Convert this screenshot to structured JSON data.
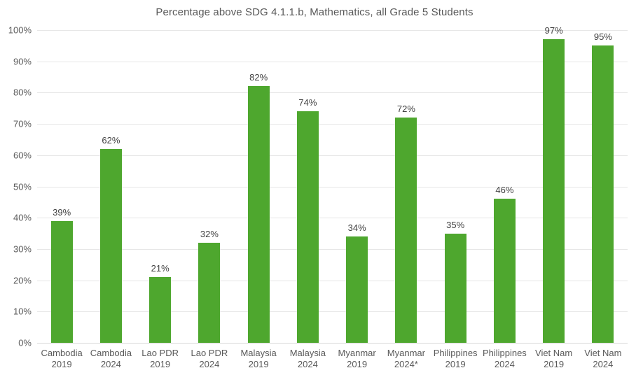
{
  "chart_data": {
    "type": "bar",
    "title": "Percentage above SDG 4.1.1.b, Mathematics, all Grade 5 Students",
    "categories": [
      "Cambodia 2019",
      "Cambodia 2024",
      "Lao PDR 2019",
      "Lao PDR 2024",
      "Malaysia 2019",
      "Malaysia 2024",
      "Myanmar 2019",
      "Myanmar 2024*",
      "Philippines 2019",
      "Philippines 2024",
      "Viet Nam 2019",
      "Viet Nam 2024"
    ],
    "values": [
      39,
      62,
      21,
      32,
      82,
      74,
      34,
      72,
      35,
      46,
      97,
      95
    ],
    "data_labels": [
      "39%",
      "62%",
      "21%",
      "32%",
      "82%",
      "74%",
      "34%",
      "72%",
      "35%",
      "46%",
      "97%",
      "95%"
    ],
    "y_tick_labels": [
      "0%",
      "10%",
      "20%",
      "30%",
      "40%",
      "50%",
      "60%",
      "70%",
      "80%",
      "90%",
      "100%"
    ],
    "ylim": [
      0,
      100
    ],
    "ytick_step": 10,
    "grid": true,
    "legend": false,
    "xlabel": "",
    "ylabel": "",
    "colors": {
      "bar": "#4ea72e",
      "gridline": "#e6e6e6",
      "axis_line": "#d9d9d9",
      "title_text": "#595959",
      "tick_text": "#595959",
      "data_label_text": "#404040",
      "background": "#ffffff"
    }
  }
}
